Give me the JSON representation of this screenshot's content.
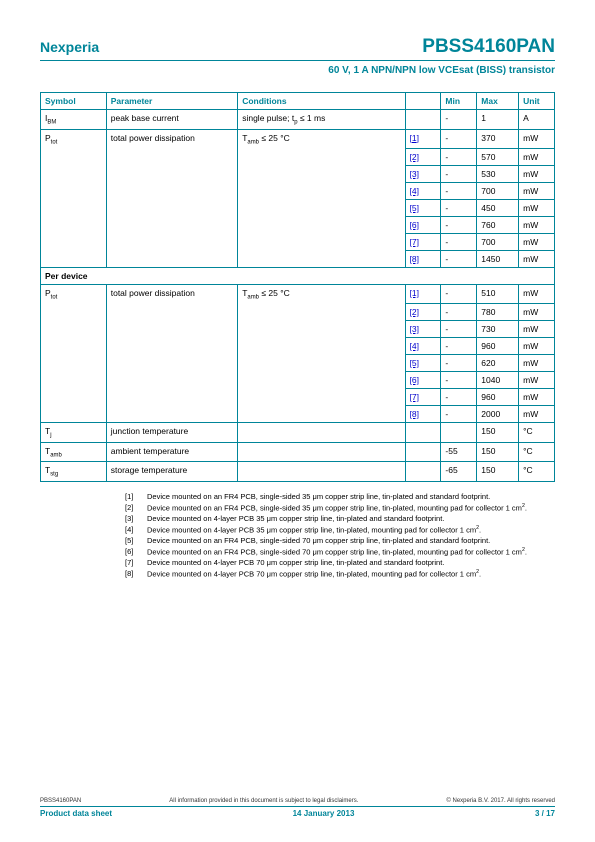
{
  "header": {
    "company": "Nexperia",
    "part_number": "PBSS4160PAN",
    "subtitle": "60 V, 1 A NPN/NPN low VCEsat (BISS) transistor"
  },
  "table": {
    "columns": [
      "Symbol",
      "Parameter",
      "Conditions",
      "",
      "Min",
      "Max",
      "Unit"
    ],
    "rows1": [
      {
        "sym": "I_BM",
        "par": "peak base current",
        "cond": "single pulse; t_p ≤ 1 ms",
        "ref": "",
        "min": "-",
        "max": "1",
        "unit": "A"
      },
      {
        "sym": "P_tot",
        "par": "total power dissipation",
        "cond": "T_amb ≤ 25 °C",
        "ref": "[1]",
        "min": "-",
        "max": "370",
        "unit": "mW"
      },
      {
        "sym": "",
        "par": "",
        "cond": "",
        "ref": "[2]",
        "min": "-",
        "max": "570",
        "unit": "mW"
      },
      {
        "sym": "",
        "par": "",
        "cond": "",
        "ref": "[3]",
        "min": "-",
        "max": "530",
        "unit": "mW"
      },
      {
        "sym": "",
        "par": "",
        "cond": "",
        "ref": "[4]",
        "min": "-",
        "max": "700",
        "unit": "mW"
      },
      {
        "sym": "",
        "par": "",
        "cond": "",
        "ref": "[5]",
        "min": "-",
        "max": "450",
        "unit": "mW"
      },
      {
        "sym": "",
        "par": "",
        "cond": "",
        "ref": "[6]",
        "min": "-",
        "max": "760",
        "unit": "mW"
      },
      {
        "sym": "",
        "par": "",
        "cond": "",
        "ref": "[7]",
        "min": "-",
        "max": "700",
        "unit": "mW"
      },
      {
        "sym": "",
        "par": "",
        "cond": "",
        "ref": "[8]",
        "min": "-",
        "max": "1450",
        "unit": "mW"
      }
    ],
    "section": "Per device",
    "rows2": [
      {
        "sym": "P_tot",
        "par": "total power dissipation",
        "cond": "T_amb ≤ 25 °C",
        "ref": "[1]",
        "min": "-",
        "max": "510",
        "unit": "mW"
      },
      {
        "sym": "",
        "par": "",
        "cond": "",
        "ref": "[2]",
        "min": "-",
        "max": "780",
        "unit": "mW"
      },
      {
        "sym": "",
        "par": "",
        "cond": "",
        "ref": "[3]",
        "min": "-",
        "max": "730",
        "unit": "mW"
      },
      {
        "sym": "",
        "par": "",
        "cond": "",
        "ref": "[4]",
        "min": "-",
        "max": "960",
        "unit": "mW"
      },
      {
        "sym": "",
        "par": "",
        "cond": "",
        "ref": "[5]",
        "min": "-",
        "max": "620",
        "unit": "mW"
      },
      {
        "sym": "",
        "par": "",
        "cond": "",
        "ref": "[6]",
        "min": "-",
        "max": "1040",
        "unit": "mW"
      },
      {
        "sym": "",
        "par": "",
        "cond": "",
        "ref": "[7]",
        "min": "-",
        "max": "960",
        "unit": "mW"
      },
      {
        "sym": "",
        "par": "",
        "cond": "",
        "ref": "[8]",
        "min": "-",
        "max": "2000",
        "unit": "mW"
      },
      {
        "sym": "T_j",
        "par": "junction temperature",
        "cond": "",
        "ref": "",
        "min": "",
        "max": "150",
        "unit": "°C"
      },
      {
        "sym": "T_amb",
        "par": "ambient temperature",
        "cond": "",
        "ref": "",
        "min": "-55",
        "max": "150",
        "unit": "°C"
      },
      {
        "sym": "T_stg",
        "par": "storage temperature",
        "cond": "",
        "ref": "",
        "min": "-65",
        "max": "150",
        "unit": "°C"
      }
    ]
  },
  "footnotes": [
    {
      "n": "[1]",
      "t": "Device mounted on an FR4 PCB, single-sided 35 μm copper strip line, tin-plated and standard footprint."
    },
    {
      "n": "[2]",
      "t": "Device mounted on an FR4 PCB, single-sided 35 μm copper strip line, tin-plated, mounting pad for collector 1 cm²."
    },
    {
      "n": "[3]",
      "t": "Device mounted on 4-layer PCB 35 μm copper strip line, tin-plated and standard footprint."
    },
    {
      "n": "[4]",
      "t": "Device mounted on 4-layer PCB 35 μm copper strip line, tin-plated, mounting pad for collector 1 cm²."
    },
    {
      "n": "[5]",
      "t": "Device mounted on an FR4 PCB, single-sided 70 μm copper strip line, tin-plated and standard footprint."
    },
    {
      "n": "[6]",
      "t": "Device mounted on an FR4 PCB, single-sided 70 μm copper strip line, tin-plated, mounting pad for collector 1 cm²."
    },
    {
      "n": "[7]",
      "t": "Device mounted on 4-layer PCB 70 μm copper strip line, tin-plated and standard footprint."
    },
    {
      "n": "[8]",
      "t": "Device mounted on 4-layer PCB 70 μm copper strip line, tin-plated, mounting pad for collector 1 cm²."
    }
  ],
  "footer": {
    "left_small": "PBSS4160PAN",
    "center_small": "All information provided in this document is subject to legal disclaimers.",
    "right_small": "© Nexperia B.V. 2017. All rights reserved",
    "left_bold": "Product data sheet",
    "center_bold": "14 January 2013",
    "right_bold": "3 / 17"
  }
}
